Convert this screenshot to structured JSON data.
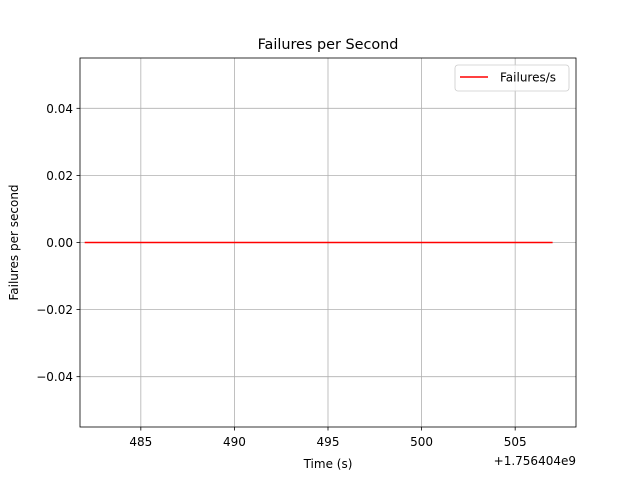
{
  "chart_data": {
    "type": "line",
    "title": "Failures per Second",
    "xlabel": "Time (s)",
    "ylabel": "Failures per second",
    "x_offset_label": "+1.756404e9",
    "xlim": [
      481.75,
      508.25
    ],
    "ylim": [
      -0.055,
      0.055
    ],
    "x_ticks": [
      485,
      490,
      495,
      500,
      505
    ],
    "x_tick_labels": [
      "485",
      "490",
      "495",
      "500",
      "505"
    ],
    "y_ticks": [
      -0.04,
      -0.02,
      0.0,
      0.02,
      0.04
    ],
    "y_tick_labels": [
      "−0.04",
      "−0.02",
      "0.00",
      "0.02",
      "0.04"
    ],
    "grid": true,
    "legend_position": "top-right",
    "series": [
      {
        "name": "Failures/s",
        "color": "#ff0000",
        "x": [
          482,
          507
        ],
        "y": [
          0,
          0
        ]
      }
    ]
  }
}
